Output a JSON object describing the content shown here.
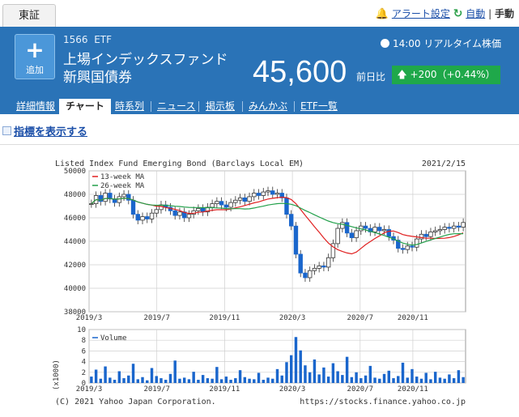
{
  "exchange_tab": "東証",
  "top_links": {
    "alert": "アラート設定",
    "auto": "自動",
    "separator": "|",
    "manual": "手動"
  },
  "stock": {
    "add_label": "追加",
    "code": "1566",
    "type": "ETF",
    "name": "上場インデックスファンド新興国債券",
    "price": "45,600",
    "prev_label": "前日比",
    "change": "+200（+0.44%）",
    "realtime": "14:00 リアルタイム株価"
  },
  "tabs": [
    "詳細情報",
    "チャート",
    "時系列",
    "ニュース",
    "掲示板",
    "みんかぶ",
    "ETF一覧"
  ],
  "active_tab": 1,
  "indicator_link": "指標を表示する",
  "chart_data": [
    {
      "type": "candlestick",
      "title": "Listed Index Fund Emerging Bond (Barclays Local EM)",
      "date": "2021/2/15",
      "yticks": [
        38000,
        40000,
        42000,
        44000,
        46000,
        48000,
        50000
      ],
      "ylim": [
        38000,
        50000
      ],
      "xticks": [
        "2019/3",
        "2019/7",
        "2019/11",
        "2020/3",
        "2020/7",
        "2020/11"
      ],
      "legend": [
        "13-week MA",
        "26-week MA"
      ],
      "colors": {
        "candle": "#1a66cc",
        "ma13": "#e02020",
        "ma26": "#22a04a",
        "grid": "#cfcfcf"
      },
      "close": [
        47200,
        47900,
        47400,
        48100,
        47600,
        47300,
        47800,
        48000,
        47500,
        46300,
        45800,
        46100,
        45900,
        46400,
        46700,
        47100,
        46900,
        46600,
        46200,
        46500,
        46000,
        46300,
        46600,
        46800,
        46500,
        46900,
        47200,
        47400,
        47100,
        46900,
        47300,
        47500,
        47700,
        47400,
        47800,
        48100,
        47900,
        48200,
        48300,
        48000,
        48100,
        47700,
        46300,
        45300,
        42900,
        41300,
        40900,
        41500,
        41700,
        41900,
        41800,
        42600,
        43800,
        45100,
        45600,
        44700,
        44300,
        44900,
        45300,
        45100,
        44800,
        45200,
        44900,
        45000,
        44400,
        44100,
        43400,
        43300,
        43600,
        43500,
        44200,
        44600,
        44400,
        44800,
        44900,
        45000,
        45200,
        45100,
        45300,
        45200,
        45600
      ]
    },
    {
      "type": "bar",
      "label": "Volume",
      "unit": "(x1000)",
      "yticks": [
        0,
        2,
        4,
        6,
        8,
        10
      ],
      "ylim": [
        0,
        10
      ],
      "xticks": [
        "2019/3",
        "2019/7",
        "2019/11",
        "2020/3",
        "2020/7",
        "2020/11"
      ],
      "values": [
        1.2,
        2.5,
        0.8,
        3.1,
        1.0,
        0.6,
        2.2,
        0.9,
        1.4,
        3.6,
        0.7,
        1.1,
        0.5,
        2.8,
        1.3,
        0.9,
        0.6,
        1.7,
        4.2,
        0.8,
        1.0,
        0.7,
        2.1,
        0.6,
        1.5,
        0.9,
        0.8,
        3.0,
        0.7,
        1.2,
        0.6,
        0.9,
        2.4,
        1.1,
        0.8,
        0.7,
        1.9,
        0.6,
        1.0,
        0.8,
        2.6,
        1.4,
        3.9,
        5.2,
        8.6,
        6.1,
        3.3,
        2.0,
        4.4,
        1.6,
        2.9,
        1.2,
        3.7,
        2.2,
        1.5,
        4.9,
        1.1,
        2.0,
        0.9,
        1.4,
        3.2,
        1.0,
        0.8,
        1.7,
        2.3,
        0.9,
        1.3,
        3.8,
        1.0,
        2.6,
        1.2,
        0.8,
        1.9,
        0.7,
        2.1,
        1.0,
        0.8,
        1.6,
        0.9,
        2.4,
        1.1
      ]
    }
  ],
  "footer": {
    "copyright": "(C) 2021 Yahoo Japan Corporation.",
    "url": "https://stocks.finance.yahoo.co.jp"
  }
}
